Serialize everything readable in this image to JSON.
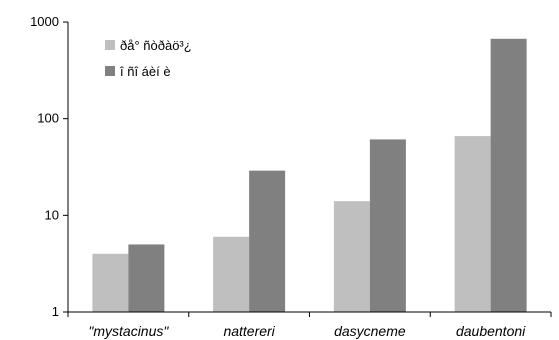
{
  "chart_data": {
    "type": "bar",
    "title": "",
    "xlabel": "",
    "ylabel": "",
    "y_scale": "log",
    "ylim": [
      1,
      1000
    ],
    "y_ticks": [
      1,
      10,
      100,
      1000
    ],
    "y_tick_labels": [
      "1",
      "10",
      "100",
      "1000"
    ],
    "grid": false,
    "legend_position": "top-left",
    "categories": [
      "\"mystacinus\"",
      "nattereri",
      "dasycneme",
      "daubentoni"
    ],
    "series": [
      {
        "name": "ðå° ñòðàö³¿",
        "color": "#bfbfbf",
        "values": [
          4,
          6,
          14,
          66
        ]
      },
      {
        "name": "î ñî áèí è",
        "color": "#808080",
        "values": [
          5,
          29,
          61,
          670
        ]
      }
    ]
  }
}
